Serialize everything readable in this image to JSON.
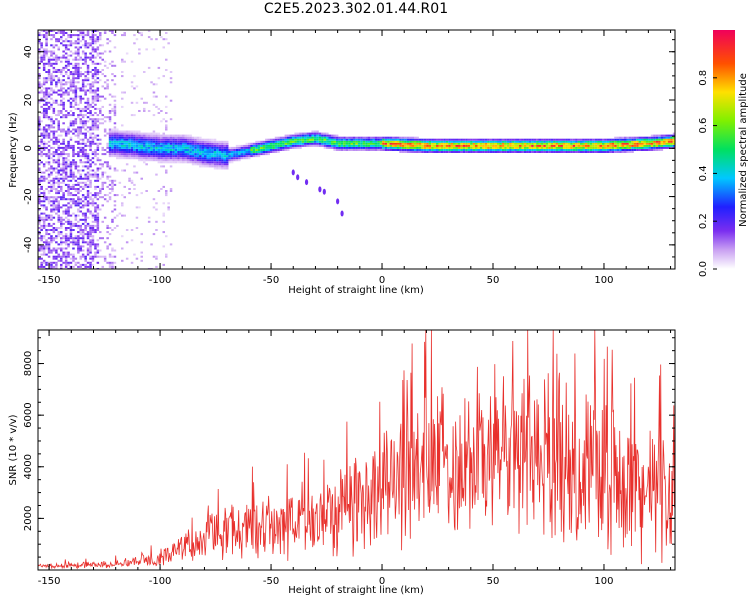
{
  "title": "C2E5.2023.302.01.44.R01",
  "chart_data": [
    {
      "type": "heatmap",
      "title": "C2E5.2023.302.01.44.R01",
      "xlabel": "Height of straight line (km)",
      "ylabel": "Frequency (Hz)",
      "xlim": [
        -155,
        132
      ],
      "ylim": [
        -50,
        49
      ],
      "xticks": [
        -150,
        -100,
        -50,
        0,
        50,
        100
      ],
      "yticks": [
        -40,
        -20,
        0,
        20,
        40
      ],
      "ridge": {
        "description_values": "center frequency (Hz) vs height (km)",
        "x": [
          -122,
          -110,
          -100,
          -90,
          -80,
          -70,
          -60,
          -50,
          -40,
          -30,
          -20,
          0,
          20,
          40,
          60,
          80,
          100,
          120,
          132
        ],
        "y": [
          2,
          1,
          0,
          0,
          -2,
          -3,
          -1,
          1,
          3,
          4,
          2,
          2,
          1,
          1,
          1,
          1,
          1,
          2,
          3
        ]
      },
      "colorbar": {
        "label": "Normalized spectral amplitude",
        "range": [
          0.0,
          1.0
        ],
        "ticks": [
          0.0,
          0.2,
          0.4,
          0.6,
          0.8
        ],
        "tick_labels": [
          "0.0",
          "0.2",
          "0.4",
          "0.6",
          "0.8"
        ]
      }
    },
    {
      "type": "line",
      "xlabel": "Height of straight line (km)",
      "ylabel": "SNR (10 * v/v)",
      "xlim": [
        -155,
        132
      ],
      "ylim": [
        0,
        9300
      ],
      "xticks": [
        -150,
        -100,
        -50,
        0,
        50,
        100
      ],
      "yticks": [
        2000,
        4000,
        6000,
        8000
      ],
      "color": "#e8302c",
      "envelope": {
        "x": [
          -155,
          -130,
          -120,
          -110,
          -100,
          -90,
          -80,
          -70,
          -60,
          -50,
          -40,
          -30,
          -20,
          -10,
          0,
          10,
          20,
          30,
          40,
          50,
          60,
          70,
          80,
          90,
          100,
          110,
          120,
          132
        ],
        "mean": [
          150,
          200,
          250,
          350,
          500,
          800,
          1300,
          1500,
          1600,
          1700,
          1800,
          2000,
          2300,
          2800,
          3300,
          3600,
          4000,
          4200,
          4400,
          4500,
          4600,
          4500,
          4300,
          4000,
          3800,
          3400,
          3000,
          2800
        ],
        "amplitude": [
          100,
          120,
          150,
          200,
          300,
          500,
          800,
          1000,
          1100,
          1200,
          1300,
          1500,
          1700,
          2000,
          2300,
          2500,
          2700,
          2800,
          3000,
          3100,
          3200,
          3100,
          3000,
          2900,
          2800,
          2600,
          2400,
          2300
        ]
      }
    }
  ]
}
